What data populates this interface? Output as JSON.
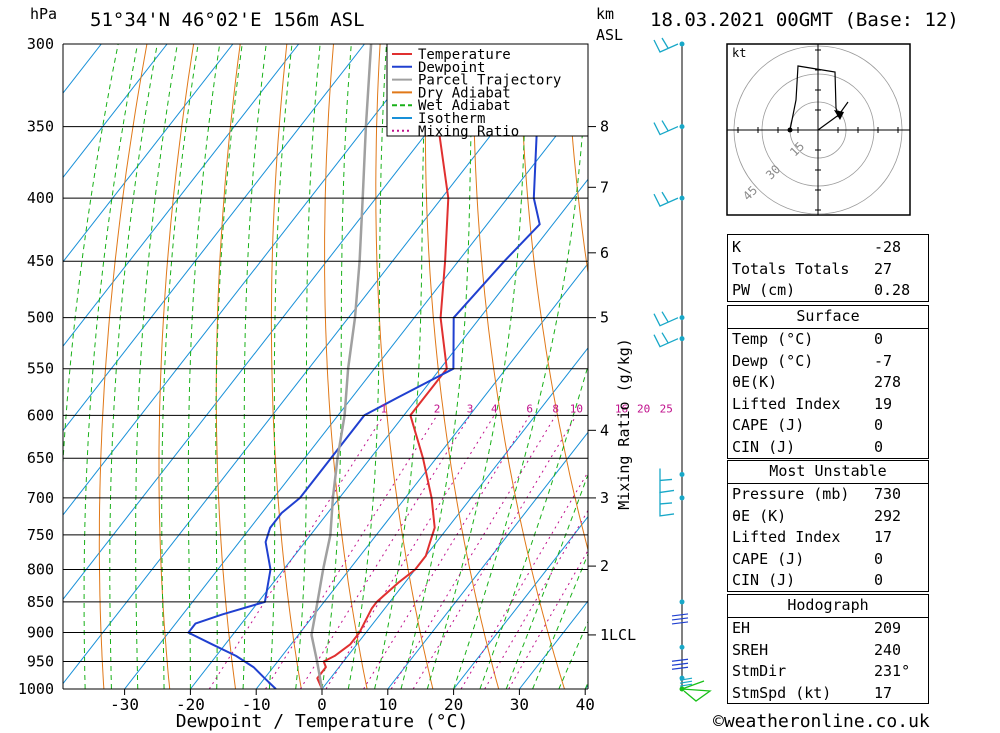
{
  "header": {
    "unit_left": "hPa",
    "location": "51°34'N 46°02'E 156m ASL",
    "unit_km": "km",
    "unit_asl": "ASL",
    "datetime": "18.03.2021 00GMT (Base: 12)"
  },
  "legend": [
    "Temperature",
    "Dewpoint",
    "Parcel Trajectory",
    "Dry Adiabat",
    "Wet Adiabat",
    "Isotherm",
    "Mixing Ratio"
  ],
  "colors": {
    "temperature": "#e03030",
    "dewpoint": "#2040d0",
    "parcel": "#a0a0a0",
    "dry_adiabat": "#e07818",
    "wet_adiabat": "#18b018",
    "isotherm": "#1890d8",
    "mixing_ratio": "#c0108c",
    "wind": "#18a8c8"
  },
  "footer": {
    "credit": "©weatheronline.co.uk"
  },
  "hodograph": {
    "unit": "kt",
    "rings": [
      "15",
      "30",
      "45"
    ]
  },
  "indices": {
    "top": [
      {
        "k": "K",
        "v": "-28"
      },
      {
        "k": "Totals Totals",
        "v": "27"
      },
      {
        "k": "PW (cm)",
        "v": "0.28"
      }
    ],
    "surface": {
      "title": "Surface",
      "rows": [
        {
          "k": "Temp (°C)",
          "v": "0"
        },
        {
          "k": "Dewp (°C)",
          "v": "-7"
        },
        {
          "k": "θE(K)",
          "v": "278"
        },
        {
          "k": "Lifted Index",
          "v": "19"
        },
        {
          "k": "CAPE (J)",
          "v": "0"
        },
        {
          "k": "CIN (J)",
          "v": "0"
        }
      ]
    },
    "most_unstable": {
      "title": "Most Unstable",
      "rows": [
        {
          "k": "Pressure (mb)",
          "v": "730"
        },
        {
          "k": "θE (K)",
          "v": "292"
        },
        {
          "k": "Lifted Index",
          "v": "17"
        },
        {
          "k": "CAPE (J)",
          "v": "0"
        },
        {
          "k": "CIN (J)",
          "v": "0"
        }
      ]
    },
    "hodograph": {
      "title": "Hodograph",
      "rows": [
        {
          "k": "EH",
          "v": "209"
        },
        {
          "k": "SREH",
          "v": "240"
        },
        {
          "k": "StmDir",
          "v": "231°"
        },
        {
          "k": "StmSpd (kt)",
          "v": "17"
        }
      ]
    }
  },
  "chart_data": {
    "type": "line",
    "subtype": "skew-T log-p",
    "xlabel": "Dewpoint / Temperature (°C)",
    "ylabel": "hPa",
    "y2label": "Mixing Ratio (g/kg)",
    "pressure_levels": [
      "300",
      "350",
      "400",
      "450",
      "500",
      "550",
      "600",
      "650",
      "700",
      "750",
      "800",
      "850",
      "900",
      "950",
      "1000"
    ],
    "x_ticks": [
      "-30",
      "-20",
      "-10",
      "0",
      "10",
      "20",
      "30",
      "40"
    ],
    "x_range": [
      -40,
      40
    ],
    "y_range": [
      1000,
      300
    ],
    "km_labels": [
      {
        "p": 350,
        "label": "8"
      },
      {
        "p": 392,
        "label": "7"
      },
      {
        "p": 443,
        "label": "6"
      },
      {
        "p": 500,
        "label": "5"
      },
      {
        "p": 617,
        "label": "4"
      },
      {
        "p": 700,
        "label": "3"
      },
      {
        "p": 795,
        "label": "2"
      },
      {
        "p": 904,
        "label": "1LCL"
      }
    ],
    "mixing_ratio_labels": [
      "1",
      "2",
      "3",
      "4",
      "6",
      "8",
      "10",
      "16",
      "20",
      "25"
    ],
    "mixing_ratio_values": [
      1,
      2,
      3,
      4,
      6,
      8,
      10,
      16,
      20,
      25
    ],
    "series": [
      {
        "name": "Temperature",
        "points": [
          [
            1000,
            0
          ],
          [
            980,
            -2
          ],
          [
            960,
            -2
          ],
          [
            950,
            -3
          ],
          [
            940,
            -2
          ],
          [
            920,
            -1
          ],
          [
            900,
            -1
          ],
          [
            860,
            -2
          ],
          [
            850,
            -2
          ],
          [
            820,
            -1
          ],
          [
            800,
            0
          ],
          [
            780,
            0
          ],
          [
            760,
            -1
          ],
          [
            740,
            -2
          ],
          [
            700,
            -6
          ],
          [
            650,
            -12
          ],
          [
            600,
            -19
          ],
          [
            550,
            -19
          ],
          [
            500,
            -26
          ],
          [
            450,
            -32
          ],
          [
            400,
            -39
          ],
          [
            350,
            -49
          ],
          [
            320,
            -56
          ],
          [
            300,
            -60
          ]
        ]
      },
      {
        "name": "Dewpoint",
        "points": [
          [
            1000,
            -7
          ],
          [
            980,
            -10
          ],
          [
            960,
            -13
          ],
          [
            940,
            -17
          ],
          [
            920,
            -22
          ],
          [
            900,
            -27
          ],
          [
            885,
            -27
          ],
          [
            870,
            -24
          ],
          [
            850,
            -19
          ],
          [
            800,
            -22
          ],
          [
            760,
            -26
          ],
          [
            740,
            -27
          ],
          [
            720,
            -27
          ],
          [
            700,
            -26
          ],
          [
            650,
            -26
          ],
          [
            600,
            -26
          ],
          [
            580,
            -23
          ],
          [
            550,
            -18
          ],
          [
            500,
            -24
          ],
          [
            450,
            -23
          ],
          [
            420,
            -22
          ],
          [
            400,
            -26
          ],
          [
            350,
            -34
          ],
          [
            320,
            -39
          ],
          [
            300,
            -41
          ]
        ]
      },
      {
        "name": "Parcel Trajectory",
        "points": [
          [
            1000,
            0
          ],
          [
            950,
            -4
          ],
          [
            904,
            -8
          ],
          [
            850,
            -11
          ],
          [
            800,
            -14
          ],
          [
            750,
            -17
          ],
          [
            700,
            -21
          ],
          [
            650,
            -25
          ],
          [
            600,
            -29
          ],
          [
            550,
            -34
          ],
          [
            500,
            -39
          ],
          [
            450,
            -45
          ],
          [
            400,
            -52
          ],
          [
            350,
            -60
          ],
          [
            300,
            -69
          ]
        ]
      }
    ],
    "wind_profile": [
      {
        "p": 300,
        "type": "barb"
      },
      {
        "p": 350,
        "type": "barb"
      },
      {
        "p": 400,
        "type": "barb"
      },
      {
        "p": 500,
        "type": "barb"
      },
      {
        "p": 520,
        "type": "barb"
      },
      {
        "p": 670,
        "type": "barb"
      },
      {
        "p": 700,
        "type": "barb"
      },
      {
        "p": 850,
        "type": "barb"
      },
      {
        "p": 925,
        "type": "barb"
      },
      {
        "p": 980,
        "type": "barb"
      },
      {
        "p": 1000,
        "type": "barb"
      }
    ]
  }
}
